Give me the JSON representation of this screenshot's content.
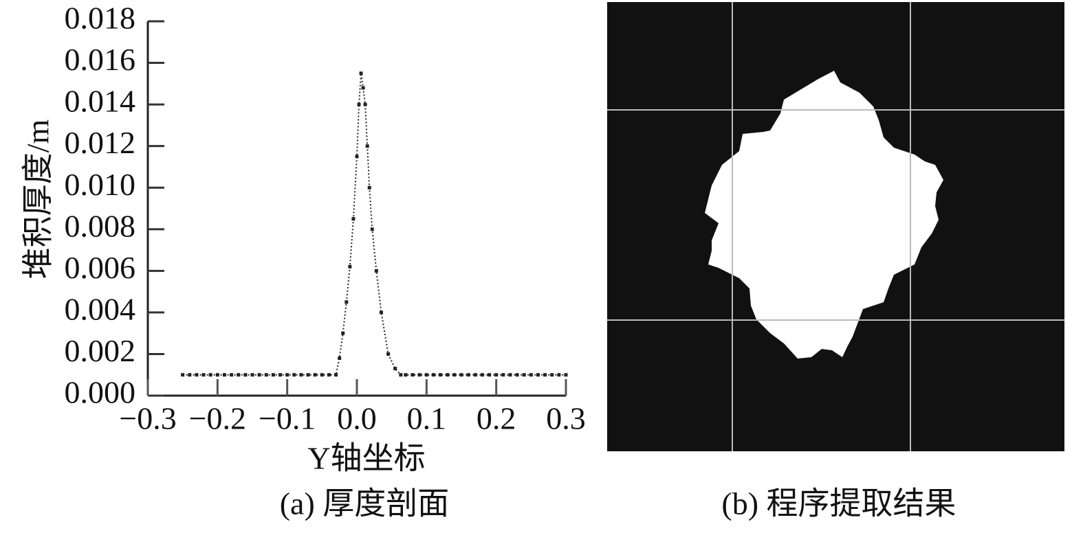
{
  "chart_data": {
    "type": "line",
    "xlabel": "Y轴坐标",
    "ylabel": "堆积厚度/m",
    "caption": "(a) 厚度剖面",
    "color": "#222222",
    "x": [
      -0.25,
      -0.24,
      -0.23,
      -0.22,
      -0.21,
      -0.2,
      -0.19,
      -0.18,
      -0.17,
      -0.16,
      -0.15,
      -0.14,
      -0.13,
      -0.12,
      -0.11,
      -0.1,
      -0.09,
      -0.08,
      -0.07,
      -0.06,
      -0.05,
      -0.04,
      -0.03,
      -0.025,
      -0.02,
      -0.015,
      -0.01,
      -0.005,
      0.0,
      0.003,
      0.006,
      0.009,
      0.012,
      0.015,
      0.018,
      0.022,
      0.028,
      0.035,
      0.045,
      0.055,
      0.063,
      0.07,
      0.08,
      0.09,
      0.1,
      0.11,
      0.12,
      0.13,
      0.14,
      0.15,
      0.16,
      0.17,
      0.18,
      0.19,
      0.2,
      0.21,
      0.22,
      0.23,
      0.24,
      0.25,
      0.26,
      0.27,
      0.28,
      0.29,
      0.3
    ],
    "values": [
      0.001,
      0.001,
      0.001,
      0.001,
      0.001,
      0.001,
      0.001,
      0.001,
      0.001,
      0.001,
      0.001,
      0.001,
      0.001,
      0.001,
      0.001,
      0.001,
      0.001,
      0.001,
      0.001,
      0.001,
      0.001,
      0.001,
      0.001,
      0.0018,
      0.003,
      0.0045,
      0.0062,
      0.0085,
      0.0115,
      0.014,
      0.0155,
      0.0148,
      0.014,
      0.012,
      0.01,
      0.008,
      0.006,
      0.004,
      0.002,
      0.0013,
      0.001,
      0.001,
      0.001,
      0.001,
      0.001,
      0.001,
      0.001,
      0.001,
      0.001,
      0.001,
      0.001,
      0.001,
      0.001,
      0.001,
      0.001,
      0.001,
      0.001,
      0.001,
      0.001,
      0.001,
      0.001,
      0.001,
      0.001,
      0.001,
      0.001
    ],
    "xlim": [
      -0.3,
      0.3
    ],
    "ylim": [
      0,
      0.018
    ],
    "xticks": [
      {
        "value": -0.3,
        "label": "−0.3"
      },
      {
        "value": -0.2,
        "label": "−0.2"
      },
      {
        "value": -0.1,
        "label": "−0.1"
      },
      {
        "value": 0,
        "label": "0.0"
      },
      0.1,
      0.2,
      0.3
    ],
    "yticks": [
      {
        "value": 0,
        "label": "0.000"
      },
      {
        "value": 0.002,
        "label": "0.002"
      },
      {
        "value": 0.004,
        "label": "0.004"
      },
      {
        "value": 0.006,
        "label": "0.006"
      },
      {
        "value": 0.008,
        "label": "0.008"
      },
      {
        "value": 0.01,
        "label": "0.010"
      },
      {
        "value": 0.012,
        "label": "0.012"
      },
      {
        "value": 0.014,
        "label": "0.014"
      },
      {
        "value": 0.016,
        "label": "0.016"
      },
      {
        "value": 0.018,
        "label": "0.018"
      }
    ]
  },
  "image_panel": {
    "caption": "(b) 程序提取结果"
  }
}
